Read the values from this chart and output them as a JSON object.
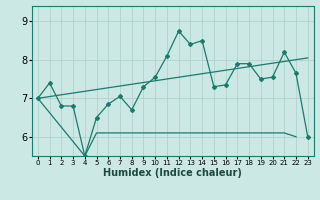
{
  "xlabel": "Humidex (Indice chaleur)",
  "bg_color": "#cce8e4",
  "grid_color": "#aacfca",
  "line_color": "#1a7a6e",
  "xlim": [
    -0.5,
    23.5
  ],
  "ylim": [
    5.5,
    9.4
  ],
  "yticks": [
    6,
    7,
    8,
    9
  ],
  "xticks": [
    0,
    1,
    2,
    3,
    4,
    5,
    6,
    7,
    8,
    9,
    10,
    11,
    12,
    13,
    14,
    15,
    16,
    17,
    18,
    19,
    20,
    21,
    22,
    23
  ],
  "line1_x": [
    0,
    1,
    2,
    3,
    4,
    5,
    6,
    7,
    8,
    9,
    10,
    11,
    12,
    13,
    14,
    15,
    16,
    17,
    18,
    19,
    20,
    21,
    22,
    23
  ],
  "line1_y": [
    7.0,
    7.4,
    6.8,
    6.8,
    5.5,
    6.5,
    6.85,
    7.05,
    6.7,
    7.3,
    7.55,
    8.1,
    8.75,
    8.4,
    8.5,
    7.3,
    7.35,
    7.9,
    7.9,
    7.5,
    7.55,
    8.2,
    7.65,
    6.0
  ],
  "line2_x": [
    0,
    4,
    5,
    10,
    14,
    21,
    22
  ],
  "line2_y": [
    7.0,
    5.5,
    6.1,
    6.1,
    6.1,
    6.1,
    6.0
  ],
  "line3_x": [
    0,
    23
  ],
  "line3_y": [
    7.0,
    8.05
  ]
}
